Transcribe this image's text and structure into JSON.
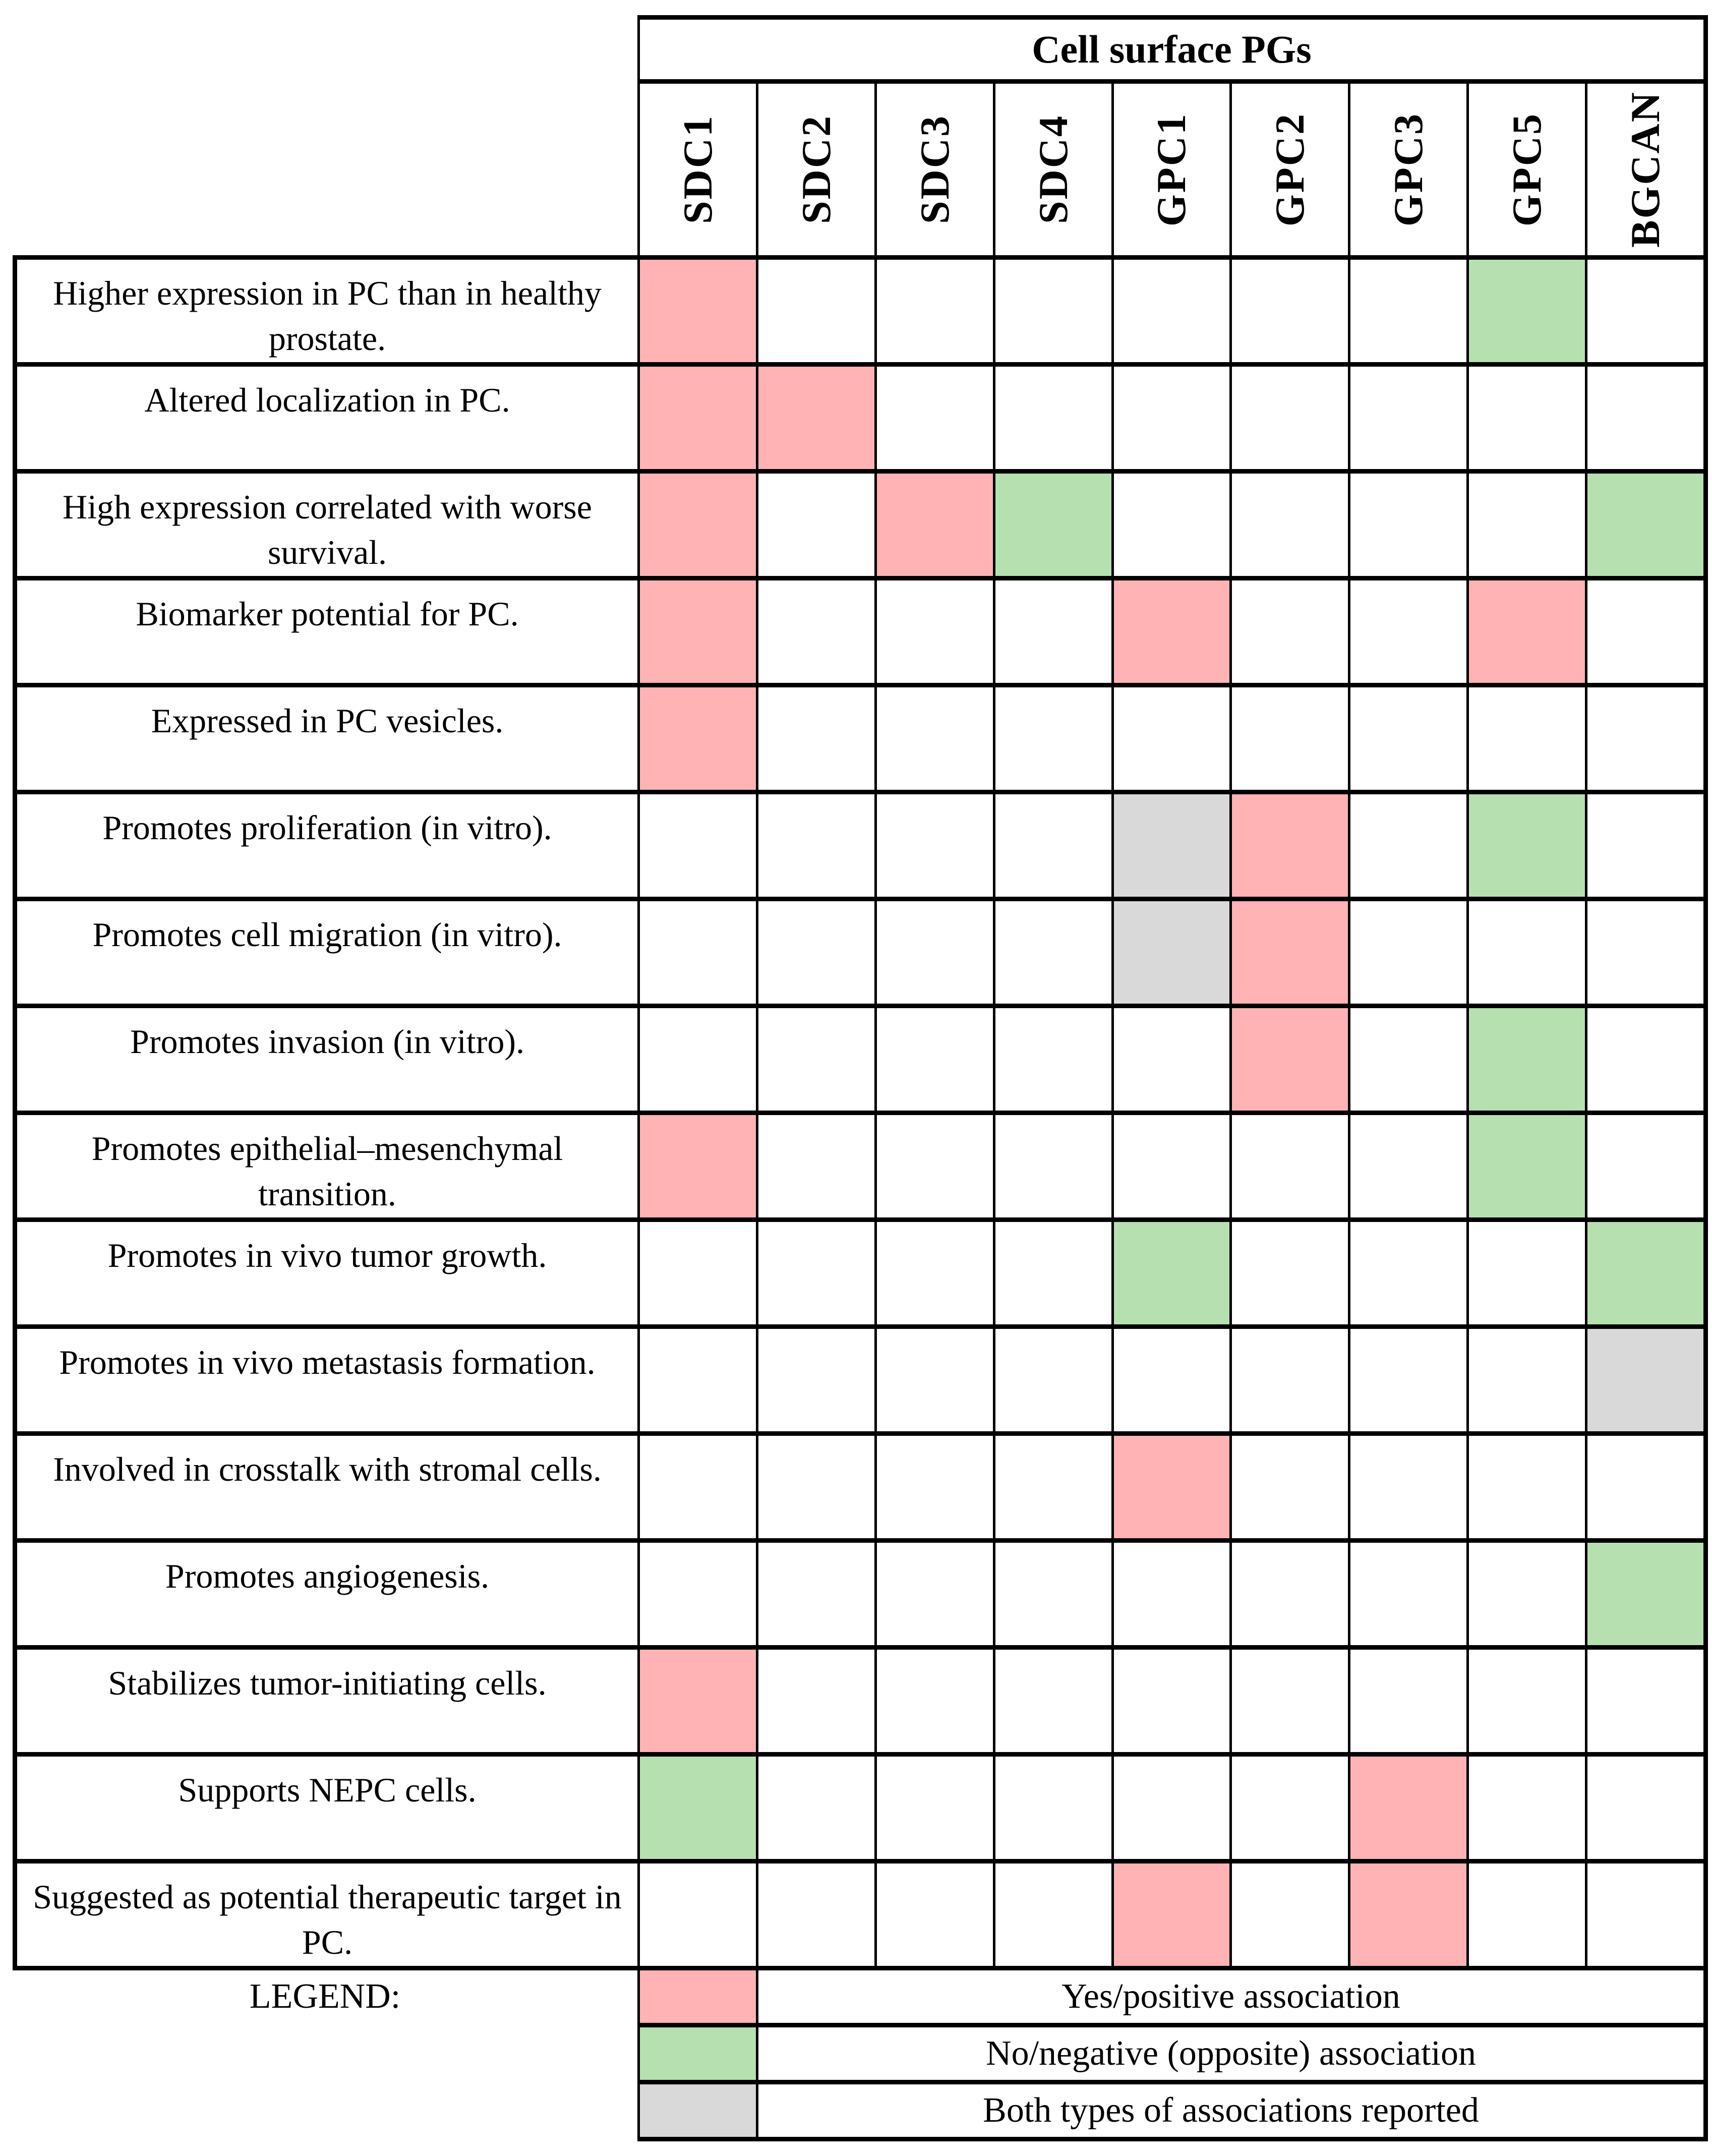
{
  "chart_data": {
    "type": "heatmap",
    "title": "Cell surface PGs",
    "legend_label": "LEGEND:",
    "columns": [
      "SDC1",
      "SDC2",
      "SDC3",
      "SDC4",
      "GPC1",
      "GPC2",
      "GPC3",
      "GPC5",
      "BGCAN"
    ],
    "rows": [
      {
        "label": "Higher expression in PC than in healthy prostate.",
        "cells": [
          "yes",
          "",
          "",
          "",
          "",
          "",
          "",
          "no",
          ""
        ]
      },
      {
        "label": "Altered localization in PC.",
        "cells": [
          "yes",
          "yes",
          "",
          "",
          "",
          "",
          "",
          "",
          ""
        ]
      },
      {
        "label": "High expression correlated with worse survival.",
        "cells": [
          "yes",
          "",
          "yes",
          "no",
          "",
          "",
          "",
          "",
          "no"
        ]
      },
      {
        "label": "Biomarker potential for PC.",
        "cells": [
          "yes",
          "",
          "",
          "",
          "yes",
          "",
          "",
          "yes",
          ""
        ]
      },
      {
        "label": "Expressed in PC vesicles.",
        "cells": [
          "yes",
          "",
          "",
          "",
          "",
          "",
          "",
          "",
          ""
        ]
      },
      {
        "label": "Promotes proliferation (in vitro).",
        "cells": [
          "",
          "",
          "",
          "",
          "both",
          "yes",
          "",
          "no",
          ""
        ]
      },
      {
        "label": "Promotes cell migration (in vitro).",
        "cells": [
          "",
          "",
          "",
          "",
          "both",
          "yes",
          "",
          "",
          ""
        ]
      },
      {
        "label": "Promotes invasion (in vitro).",
        "cells": [
          "",
          "",
          "",
          "",
          "",
          "yes",
          "",
          "no",
          ""
        ]
      },
      {
        "label": "Promotes epithelial–mesenchymal transition.",
        "cells": [
          "yes",
          "",
          "",
          "",
          "",
          "",
          "",
          "no",
          ""
        ]
      },
      {
        "label": "Promotes in vivo tumor growth.",
        "cells": [
          "",
          "",
          "",
          "",
          "no",
          "",
          "",
          "",
          "no"
        ]
      },
      {
        "label": "Promotes in vivo metastasis formation.",
        "cells": [
          "",
          "",
          "",
          "",
          "",
          "",
          "",
          "",
          "both"
        ]
      },
      {
        "label": "Involved in crosstalk with stromal cells.",
        "cells": [
          "",
          "",
          "",
          "",
          "yes",
          "",
          "",
          "",
          ""
        ]
      },
      {
        "label": "Promotes angiogenesis.",
        "cells": [
          "",
          "",
          "",
          "",
          "",
          "",
          "",
          "",
          "no"
        ]
      },
      {
        "label": "Stabilizes tumor-initiating cells.",
        "cells": [
          "yes",
          "",
          "",
          "",
          "",
          "",
          "",
          "",
          ""
        ]
      },
      {
        "label": "Supports NEPC cells.",
        "cells": [
          "no",
          "",
          "",
          "",
          "",
          "",
          "yes",
          "",
          ""
        ]
      },
      {
        "label": "Suggested as potential therapeutic target in PC.",
        "cells": [
          "",
          "",
          "",
          "",
          "yes",
          "",
          "yes",
          "",
          ""
        ]
      }
    ],
    "legend": [
      {
        "code": "yes",
        "label": "Yes/positive association"
      },
      {
        "code": "no",
        "label": "No/negative (opposite) association"
      },
      {
        "code": "both",
        "label": "Both types of associations reported"
      }
    ],
    "colors": {
      "yes": "#ffb3b5",
      "no": "#b6e0b0",
      "both": "#d9d9d9"
    }
  }
}
